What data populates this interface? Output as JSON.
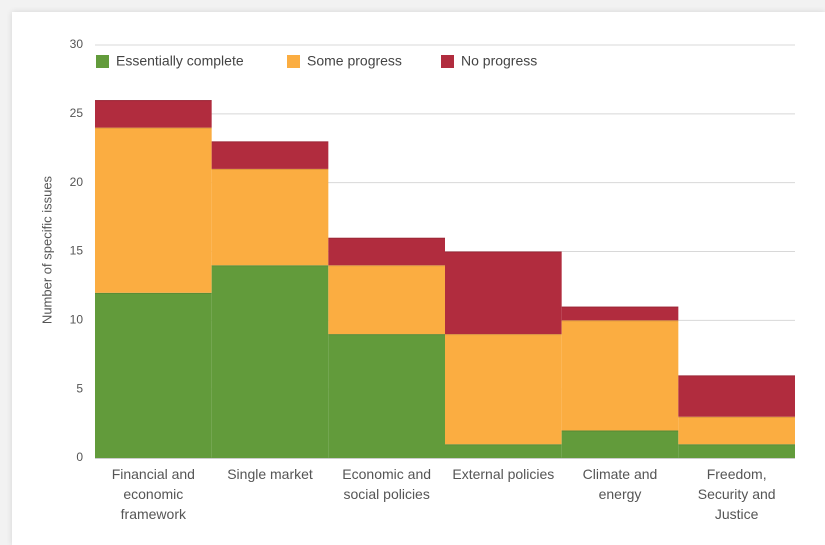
{
  "chart_data": {
    "type": "stacked_bar",
    "y_label": "Number of specific issues",
    "categories": [
      "Financial and economic framework",
      "Single market",
      "Economic and social policies",
      "External policies",
      "Climate and energy",
      "Freedom, Security and Justice"
    ],
    "series": [
      {
        "name": "Essentially complete",
        "color": "#629b3b",
        "values": [
          12,
          14,
          9,
          1,
          2,
          1
        ]
      },
      {
        "name": "Some progress",
        "color": "#fbad41",
        "values": [
          12,
          7,
          5,
          8,
          8,
          2
        ]
      },
      {
        "name": "No progress",
        "color": "#b12c3e",
        "values": [
          2,
          2,
          2,
          6,
          1,
          3
        ]
      }
    ],
    "ylim": [
      0,
      30
    ],
    "yticks": [
      0,
      5,
      10,
      15,
      20,
      25,
      30
    ],
    "grid": true,
    "legend": "top"
  }
}
